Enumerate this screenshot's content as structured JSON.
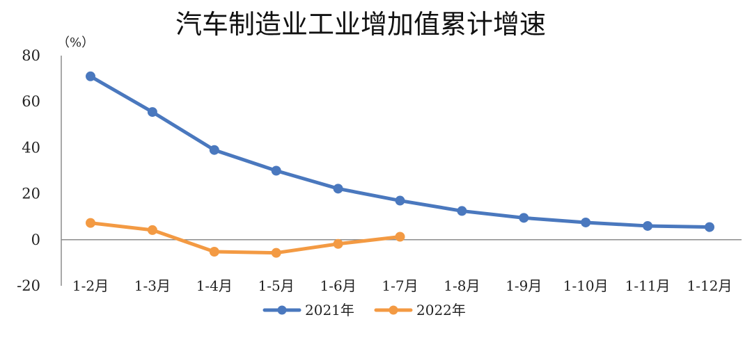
{
  "chart_data": {
    "type": "line",
    "title": "汽车制造业工业增加值累计增速",
    "unit_label": "（%）",
    "categories": [
      "1-2月",
      "1-3月",
      "1-4月",
      "1-5月",
      "1-6月",
      "1-7月",
      "1-8月",
      "1-9月",
      "1-10月",
      "1-11月",
      "1-12月"
    ],
    "series": [
      {
        "name": "2021年",
        "color": "#4a78be",
        "values": [
          71,
          55.5,
          39,
          30,
          22.2,
          17,
          12.5,
          9.5,
          7.5,
          6,
          5.5
        ]
      },
      {
        "name": "2022年",
        "color": "#f39a43",
        "values": [
          7.3,
          4.2,
          -5.2,
          -5.7,
          -1.8,
          1.3,
          null,
          null,
          null,
          null,
          null
        ]
      }
    ],
    "ylim": [
      -20,
      80
    ],
    "yticks": [
      80,
      60,
      40,
      20,
      0,
      -20
    ],
    "negative_tick_color": "#d00000",
    "legend_position": "bottom-center",
    "grid": false
  }
}
